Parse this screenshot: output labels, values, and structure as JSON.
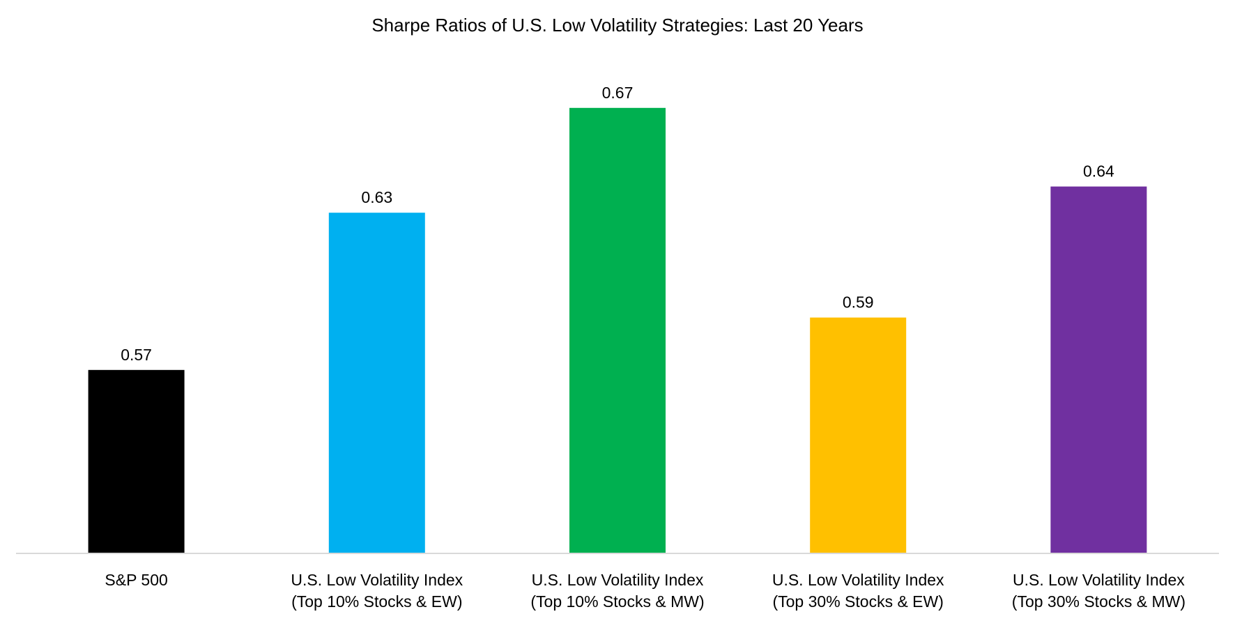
{
  "chart_data": {
    "type": "bar",
    "title": "Sharpe Ratios of U.S. Low Volatility Strategies: Last 20 Years",
    "xlabel": "",
    "ylabel": "",
    "ylim": [
      0.5,
      0.7
    ],
    "grid": false,
    "legend": "none",
    "categories": [
      [
        "S&P 500"
      ],
      [
        "U.S. Low Volatility Index",
        "(Top 10% Stocks & EW)"
      ],
      [
        "U.S. Low Volatility Index",
        "(Top 10% Stocks & MW)"
      ],
      [
        "U.S. Low Volatility Index",
        "(Top 30% Stocks & EW)"
      ],
      [
        "U.S. Low Volatility Index",
        "(Top 30% Stocks & MW)"
      ]
    ],
    "values": [
      0.57,
      0.63,
      0.67,
      0.59,
      0.64
    ],
    "data_labels": [
      "0.57",
      "0.63",
      "0.67",
      "0.59",
      "0.64"
    ],
    "colors": [
      "#000000",
      "#00B0F0",
      "#00B050",
      "#FFC000",
      "#7030A0"
    ],
    "axis_color": "#D9D9D9"
  }
}
